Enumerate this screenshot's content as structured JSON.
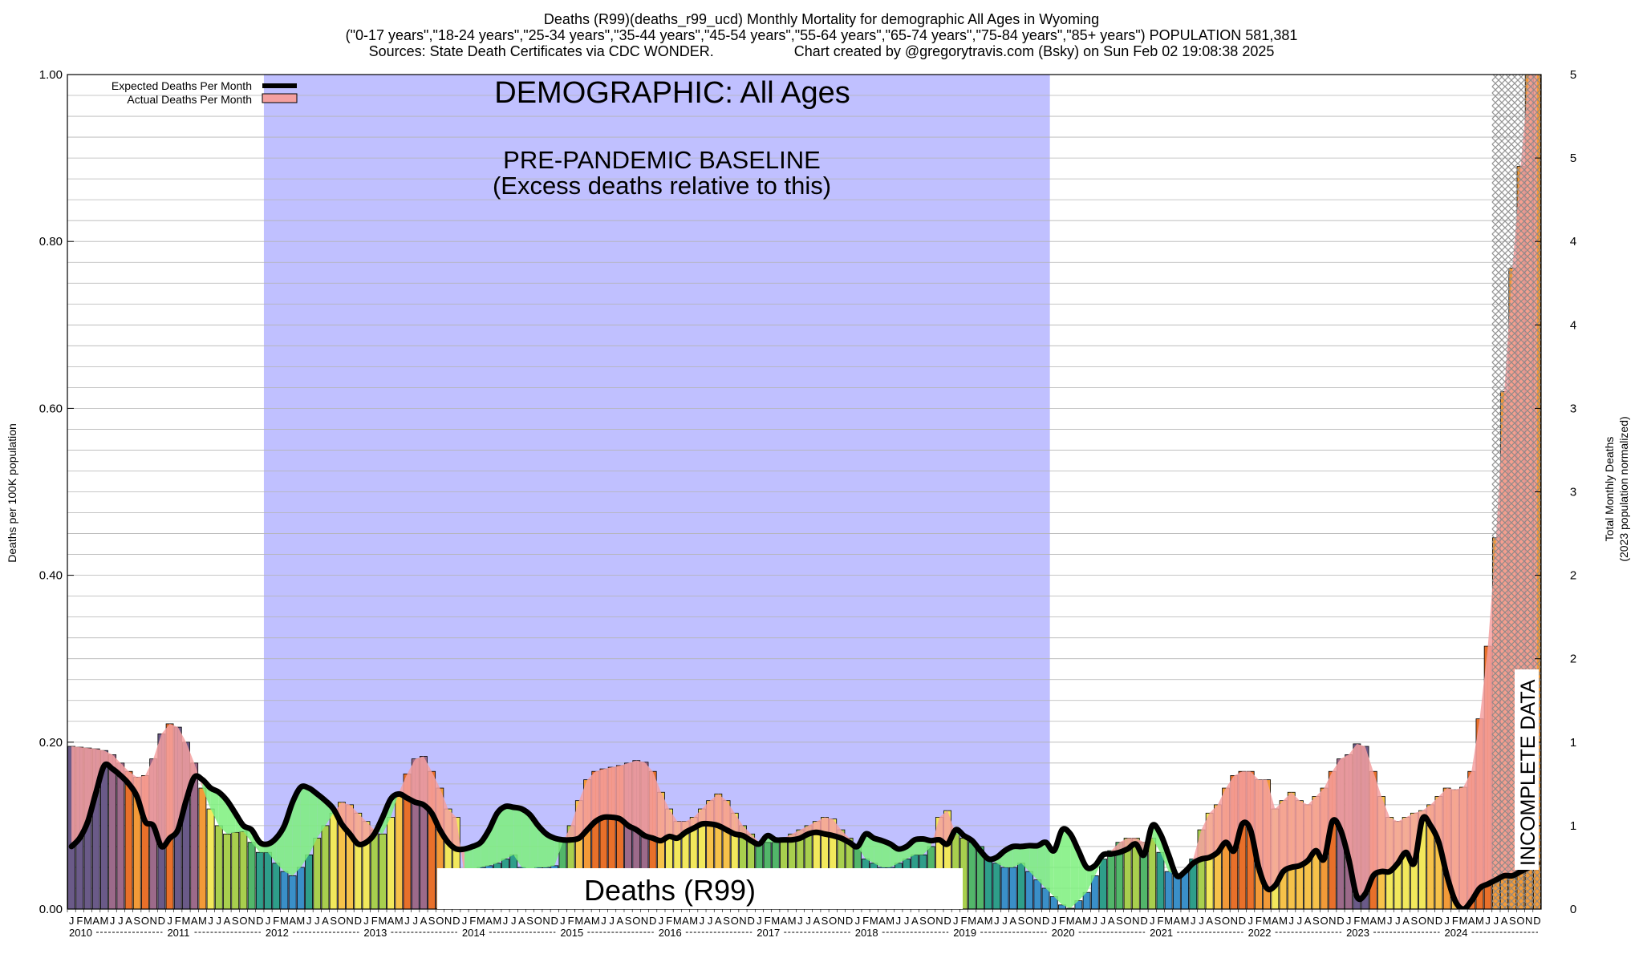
{
  "header": {
    "line1": "Deaths (R99)(deaths_r99_ucd) Monthly Mortality for demographic All Ages in Wyoming",
    "line2": "(\"0-17 years\",\"18-24 years\",\"25-34 years\",\"35-44 years\",\"45-54 years\",\"55-64 years\",\"65-74 years\",\"75-84 years\",\"85+ years\") POPULATION 581,381",
    "line3_left": "Sources: State Death Certificates via CDC WONDER.",
    "line3_right": "Chart created by @gregorytravis.com (Bsky) on Sun Feb 02 19:08:38 2025"
  },
  "colors": {
    "baseline_region": "#c0c0ff",
    "expected_line": "#000000",
    "excess_fill": "#7cf07c",
    "deficit_fill": "#f4a0a0",
    "incomplete_hatch": "#888888",
    "bar_palette": [
      "#3a8fc8",
      "#2e9e8a",
      "#52b66a",
      "#a8cf4e",
      "#f2e85c",
      "#f6c24a",
      "#f29a38",
      "#e8702a",
      "#9c6a8a",
      "#6a5a88"
    ]
  },
  "chart_data": {
    "type": "bar",
    "title": "DEMOGRAPHIC: All Ages",
    "center_label": "Deaths (R99)",
    "baseline_label_line1": "PRE-PANDEMIC BASELINE",
    "baseline_label_line2": "(Excess deaths relative to this)",
    "incomplete_label": "INCOMPLETE DATA",
    "ylabel": "Deaths per 100K population",
    "y2label_line1": "Total Monthly Deaths",
    "y2label_line2": "(2023 population normalized)",
    "ylim": [
      0,
      1.0
    ],
    "yticks": [
      "0.00",
      "0.20",
      "0.40",
      "0.60",
      "0.80",
      "1.00"
    ],
    "y2ticks": [
      "0",
      "1",
      "1",
      "2",
      "2",
      "3",
      "3",
      "4",
      "4",
      "5",
      "5"
    ],
    "grid": true,
    "legend_position": "top-left",
    "legend": [
      {
        "label": "Expected Deaths Per Month",
        "style": "line"
      },
      {
        "label": "Actual Deaths Per Month",
        "style": "fill"
      }
    ],
    "baseline_period": {
      "start": "2012-01",
      "end": "2019-12"
    },
    "incomplete_period": {
      "start": "2024-07",
      "end": "2024-12"
    },
    "month_letters": [
      "J",
      "F",
      "M",
      "A",
      "M",
      "J",
      "J",
      "A",
      "S",
      "O",
      "N",
      "D"
    ],
    "years": [
      "2010",
      "2011",
      "2012",
      "2013",
      "2014",
      "2015",
      "2016",
      "2017",
      "2018",
      "2019",
      "2020",
      "2021",
      "2022",
      "2023",
      "2024"
    ],
    "series": [
      {
        "name": "Actual Deaths Per Month",
        "values": [
          0.195,
          0.194,
          0.193,
          0.192,
          0.19,
          0.185,
          0.175,
          0.165,
          0.158,
          0.16,
          0.18,
          0.21,
          0.222,
          0.218,
          0.2,
          0.175,
          0.145,
          0.12,
          0.1,
          0.09,
          0.092,
          0.093,
          0.08,
          0.068,
          0.068,
          0.055,
          0.045,
          0.04,
          0.05,
          0.065,
          0.085,
          0.1,
          0.115,
          0.128,
          0.125,
          0.115,
          0.105,
          0.095,
          0.09,
          0.11,
          0.14,
          0.162,
          0.18,
          0.183,
          0.165,
          0.145,
          0.12,
          0.11,
          0.04,
          0.045,
          0.05,
          0.052,
          0.055,
          0.06,
          0.065,
          0.05,
          0.048,
          0.05,
          0.05,
          0.052,
          0.08,
          0.1,
          0.13,
          0.155,
          0.165,
          0.168,
          0.17,
          0.172,
          0.175,
          0.178,
          0.176,
          0.165,
          0.14,
          0.12,
          0.105,
          0.105,
          0.11,
          0.12,
          0.13,
          0.138,
          0.13,
          0.115,
          0.1,
          0.09,
          0.08,
          0.08,
          0.08,
          0.085,
          0.09,
          0.095,
          0.1,
          0.105,
          0.11,
          0.108,
          0.095,
          0.085,
          0.075,
          0.06,
          0.055,
          0.05,
          0.05,
          0.055,
          0.06,
          0.065,
          0.065,
          0.075,
          0.11,
          0.118,
          0.09,
          0.085,
          0.08,
          0.075,
          0.06,
          0.055,
          0.05,
          0.05,
          0.055,
          0.045,
          0.035,
          0.025,
          0.015,
          0.005,
          0.001,
          0.01,
          0.02,
          0.04,
          0.06,
          0.07,
          0.08,
          0.085,
          0.085,
          0.08,
          0.085,
          0.068,
          0.045,
          0.04,
          0.045,
          0.06,
          0.095,
          0.115,
          0.125,
          0.145,
          0.16,
          0.165,
          0.165,
          0.155,
          0.155,
          0.12,
          0.13,
          0.14,
          0.13,
          0.125,
          0.135,
          0.145,
          0.165,
          0.18,
          0.185,
          0.198,
          0.195,
          0.165,
          0.135,
          0.11,
          0.105,
          0.11,
          0.115,
          0.118,
          0.125,
          0.135,
          0.145,
          0.143,
          0.146,
          0.165,
          0.228,
          0.315,
          0.445,
          0.62,
          0.768,
          0.89,
          1.0,
          1.0
        ]
      },
      {
        "name": "Expected Deaths Per Month",
        "values": [
          0.075,
          0.085,
          0.105,
          0.14,
          0.172,
          0.168,
          0.16,
          0.15,
          0.135,
          0.105,
          0.1,
          0.075,
          0.085,
          0.095,
          0.13,
          0.158,
          0.155,
          0.145,
          0.14,
          0.13,
          0.115,
          0.1,
          0.095,
          0.08,
          0.078,
          0.085,
          0.1,
          0.128,
          0.146,
          0.145,
          0.138,
          0.13,
          0.12,
          0.102,
          0.09,
          0.078,
          0.08,
          0.09,
          0.11,
          0.132,
          0.138,
          0.133,
          0.128,
          0.125,
          0.115,
          0.095,
          0.08,
          0.072,
          0.072,
          0.075,
          0.08,
          0.095,
          0.115,
          0.123,
          0.122,
          0.12,
          0.113,
          0.1,
          0.09,
          0.085,
          0.083,
          0.083,
          0.085,
          0.095,
          0.105,
          0.11,
          0.11,
          0.108,
          0.1,
          0.095,
          0.088,
          0.085,
          0.082,
          0.087,
          0.085,
          0.092,
          0.097,
          0.102,
          0.102,
          0.1,
          0.095,
          0.09,
          0.088,
          0.082,
          0.078,
          0.088,
          0.083,
          0.083,
          0.083,
          0.085,
          0.09,
          0.092,
          0.09,
          0.088,
          0.085,
          0.08,
          0.075,
          0.09,
          0.085,
          0.082,
          0.078,
          0.072,
          0.075,
          0.083,
          0.084,
          0.082,
          0.083,
          0.078,
          0.095,
          0.088,
          0.082,
          0.07,
          0.06,
          0.062,
          0.07,
          0.075,
          0.075,
          0.076,
          0.076,
          0.08,
          0.07,
          0.095,
          0.09,
          0.07,
          0.05,
          0.052,
          0.065,
          0.066,
          0.068,
          0.072,
          0.078,
          0.065,
          0.1,
          0.09,
          0.065,
          0.04,
          0.045,
          0.055,
          0.06,
          0.062,
          0.068,
          0.08,
          0.07,
          0.102,
          0.095,
          0.05,
          0.025,
          0.028,
          0.045,
          0.05,
          0.052,
          0.058,
          0.07,
          0.06,
          0.105,
          0.095,
          0.06,
          0.015,
          0.018,
          0.04,
          0.045,
          0.045,
          0.055,
          0.068,
          0.055,
          0.108,
          0.1,
          0.08,
          0.04,
          0.01,
          0.0,
          0.01,
          0.025,
          0.03,
          0.035,
          0.04,
          0.04,
          0.045,
          0.05,
          0.055
        ]
      }
    ]
  }
}
